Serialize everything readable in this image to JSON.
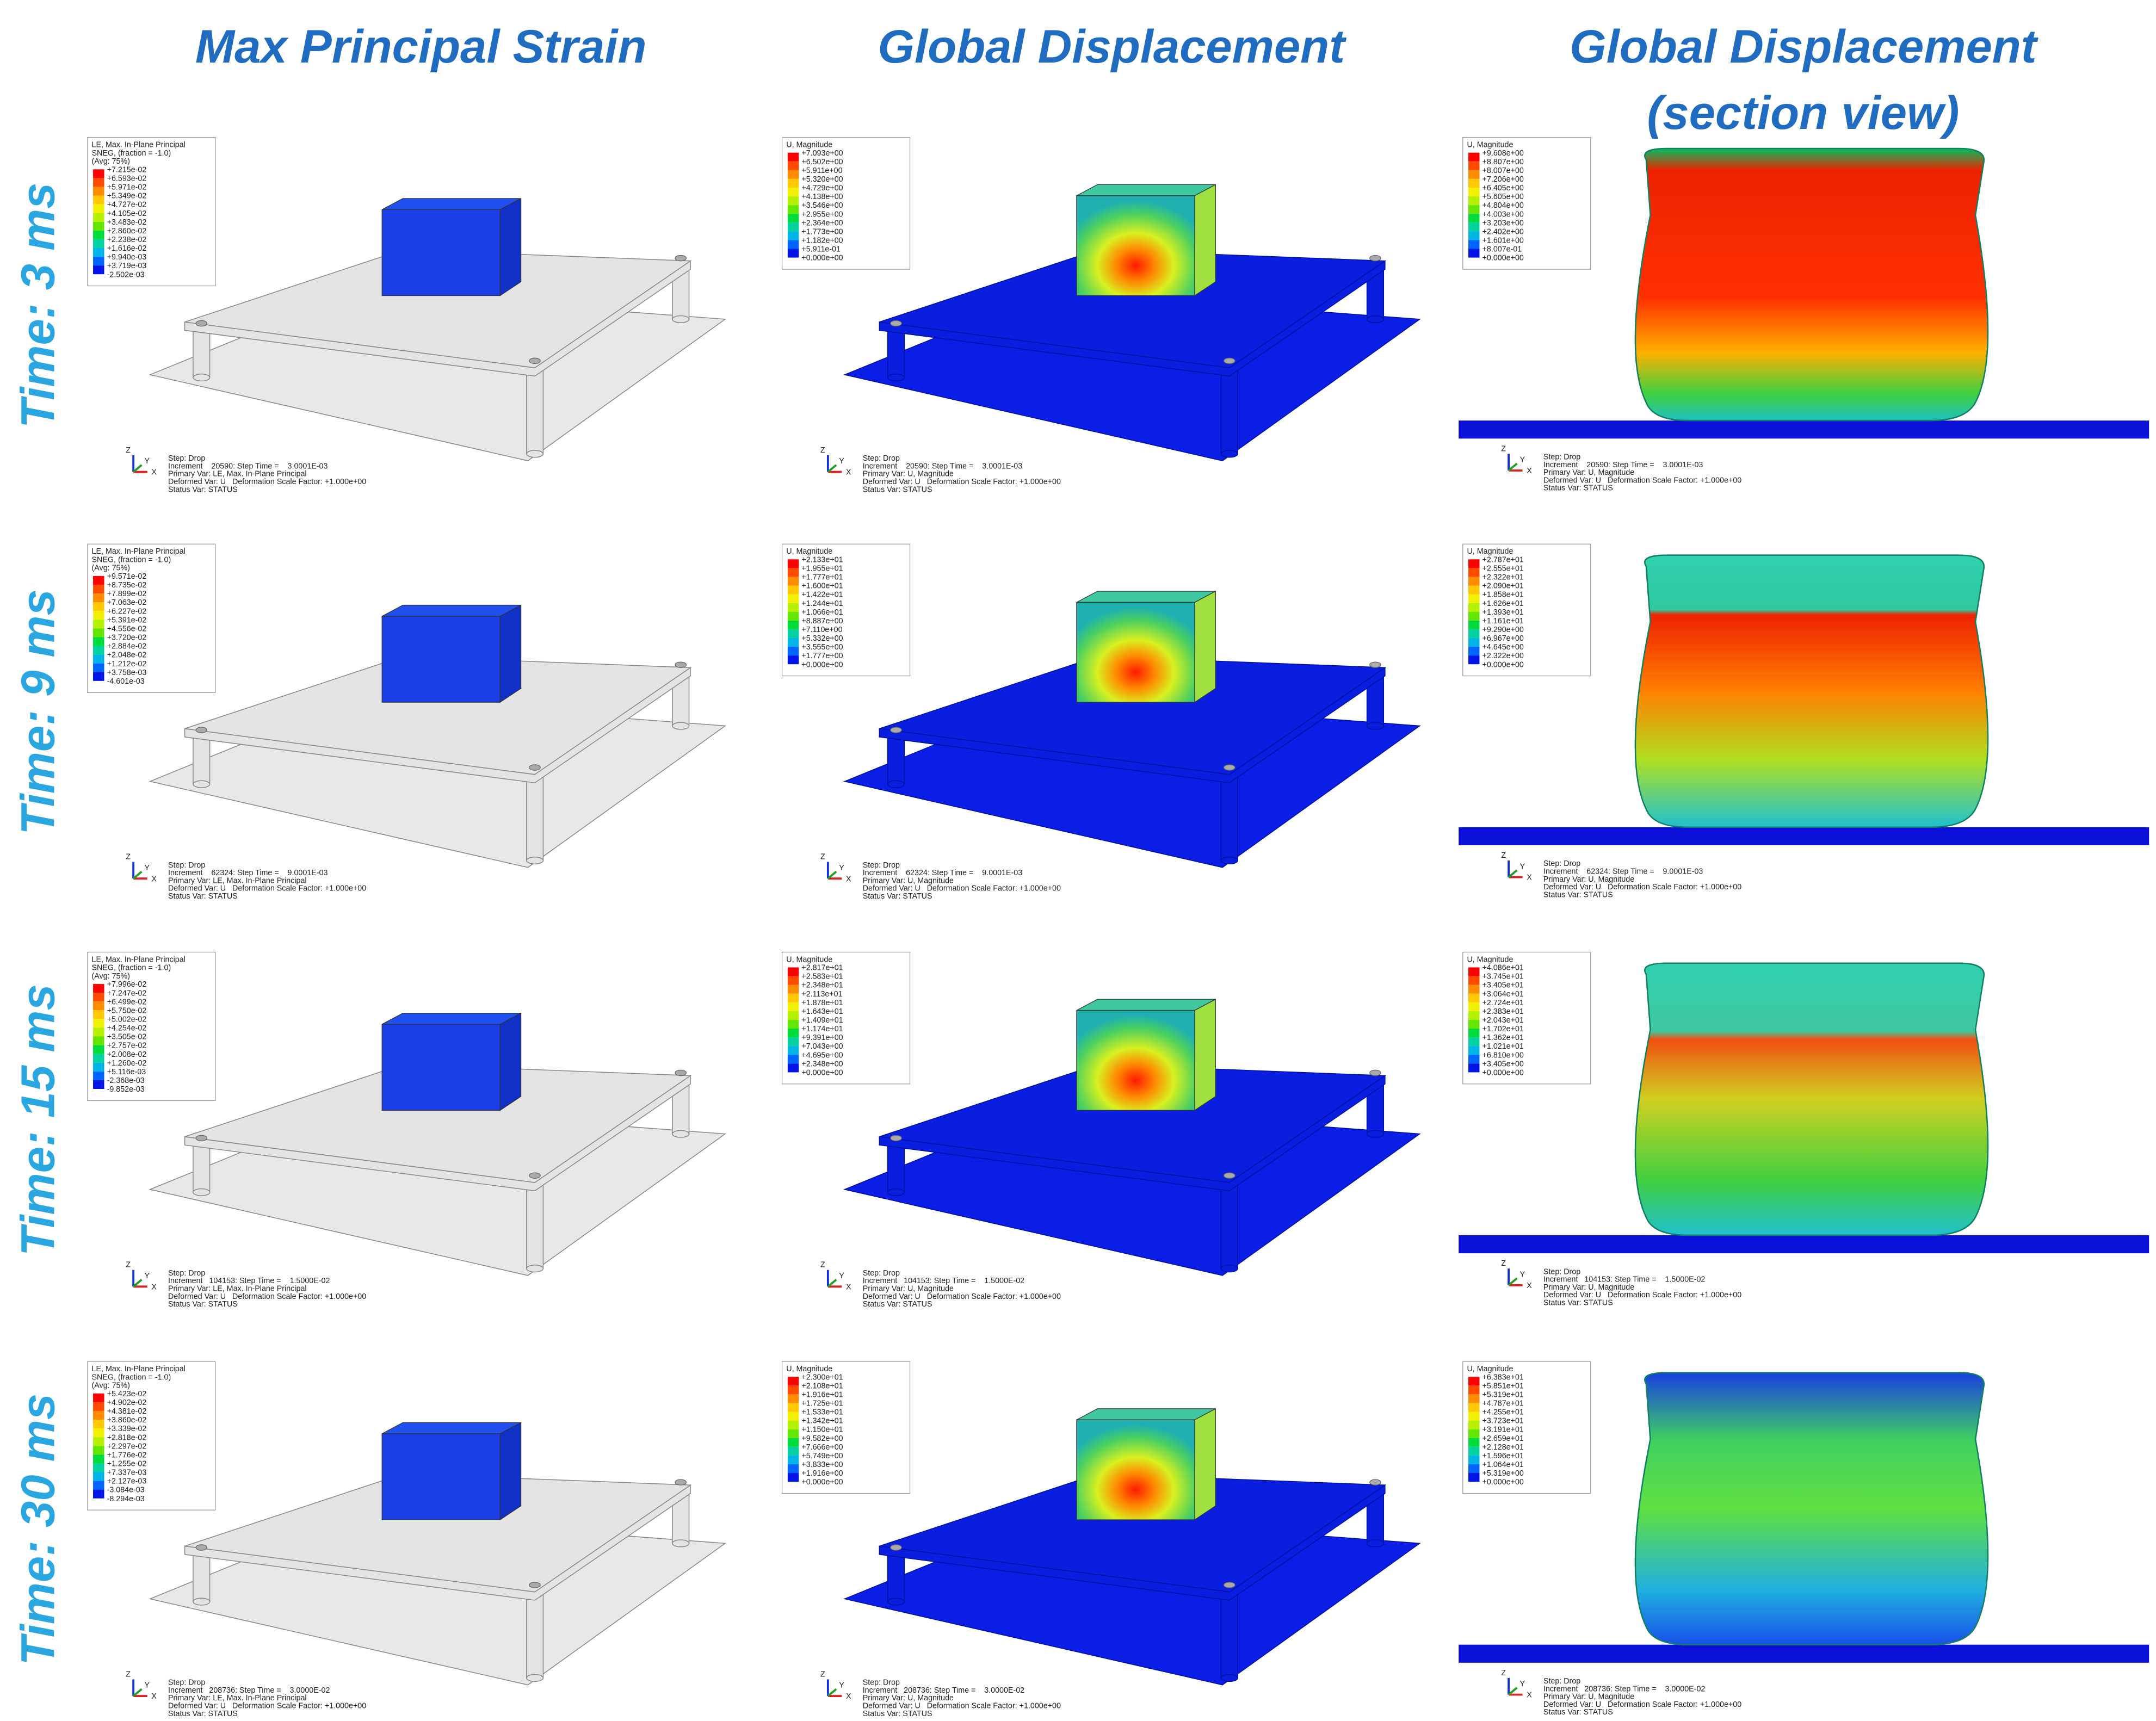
{
  "headers": [
    {
      "lines": [
        "Max Principal Strain"
      ]
    },
    {
      "lines": [
        "Global Displacement"
      ]
    },
    {
      "lines": [
        "Global Displacement",
        "(section view)"
      ]
    }
  ],
  "triad": {
    "z": "Z",
    "y": "Y",
    "x": "X"
  },
  "rows": [
    {
      "label": "Time: 3 ms",
      "panels": [
        {
          "legend_title": [
            "LE, Max. In-Plane Principal",
            "SNEG, (fraction = -1.0)",
            "(Avg: 75%)"
          ],
          "legend_values": [
            "+7.215e-02",
            "+6.593e-02",
            "+5.971e-02",
            "+5.349e-02",
            "+4.727e-02",
            "+4.105e-02",
            "+3.483e-02",
            "+2.860e-02",
            "+2.238e-02",
            "+1.616e-02",
            "+9.940e-03",
            "+3.719e-03",
            "-2.502e-03"
          ],
          "footer": [
            "Step: Drop",
            "Increment    20590: Step Time =    3.0001E-03",
            "Primary Var: LE, Max. In-Plane Principal",
            "Deformed Var: U   Deformation Scale Factor: +1.000e+00",
            "Status Var: STATUS"
          ]
        },
        {
          "legend_title": [
            "U, Magnitude"
          ],
          "legend_values": [
            "+7.093e+00",
            "+6.502e+00",
            "+5.911e+00",
            "+5.320e+00",
            "+4.729e+00",
            "+4.138e+00",
            "+3.546e+00",
            "+2.955e+00",
            "+2.364e+00",
            "+1.773e+00",
            "+1.182e+00",
            "+5.911e-01",
            "+0.000e+00"
          ],
          "footer": [
            "Step: Drop",
            "Increment    20590: Step Time =    3.0001E-03",
            "Primary Var: U, Magnitude",
            "Deformed Var: U   Deformation Scale Factor: +1.000e+00",
            "Status Var: STATUS"
          ]
        },
        {
          "legend_title": [
            "U, Magnitude"
          ],
          "legend_values": [
            "+9.608e+00",
            "+8.807e+00",
            "+8.007e+00",
            "+7.206e+00",
            "+6.405e+00",
            "+5.605e+00",
            "+4.804e+00",
            "+4.003e+00",
            "+3.203e+00",
            "+2.402e+00",
            "+1.601e+00",
            "+8.007e-01",
            "+0.000e+00"
          ],
          "footer": [
            "Step: Drop",
            "Increment    20590: Step Time =    3.0001E-03",
            "Primary Var: U, Magnitude",
            "Deformed Var: U   Deformation Scale Factor: +1.000e+00",
            "Status Var: STATUS"
          ]
        }
      ]
    },
    {
      "label": "Time: 9 ms",
      "panels": [
        {
          "legend_title": [
            "LE, Max. In-Plane Principal",
            "SNEG, (fraction = -1.0)",
            "(Avg: 75%)"
          ],
          "legend_values": [
            "+9.571e-02",
            "+8.735e-02",
            "+7.899e-02",
            "+7.063e-02",
            "+6.227e-02",
            "+5.391e-02",
            "+4.556e-02",
            "+3.720e-02",
            "+2.884e-02",
            "+2.048e-02",
            "+1.212e-02",
            "+3.758e-03",
            "-4.601e-03"
          ],
          "footer": [
            "Step: Drop",
            "Increment    62324: Step Time =    9.0001E-03",
            "Primary Var: LE, Max. In-Plane Principal",
            "Deformed Var: U   Deformation Scale Factor: +1.000e+00",
            "Status Var: STATUS"
          ]
        },
        {
          "legend_title": [
            "U, Magnitude"
          ],
          "legend_values": [
            "+2.133e+01",
            "+1.955e+01",
            "+1.777e+01",
            "+1.600e+01",
            "+1.422e+01",
            "+1.244e+01",
            "+1.066e+01",
            "+8.887e+00",
            "+7.110e+00",
            "+5.332e+00",
            "+3.555e+00",
            "+1.777e+00",
            "+0.000e+00"
          ],
          "footer": [
            "Step: Drop",
            "Increment    62324: Step Time =    9.0001E-03",
            "Primary Var: U, Magnitude",
            "Deformed Var: U   Deformation Scale Factor: +1.000e+00",
            "Status Var: STATUS"
          ]
        },
        {
          "legend_title": [
            "U, Magnitude"
          ],
          "legend_values": [
            "+2.787e+01",
            "+2.555e+01",
            "+2.322e+01",
            "+2.090e+01",
            "+1.858e+01",
            "+1.626e+01",
            "+1.393e+01",
            "+1.161e+01",
            "+9.290e+00",
            "+6.967e+00",
            "+4.645e+00",
            "+2.322e+00",
            "+0.000e+00"
          ],
          "footer": [
            "Step: Drop",
            "Increment    62324: Step Time =    9.0001E-03",
            "Primary Var: U, Magnitude",
            "Deformed Var: U   Deformation Scale Factor: +1.000e+00",
            "Status Var: STATUS"
          ]
        }
      ]
    },
    {
      "label": "Time: 15 ms",
      "panels": [
        {
          "legend_title": [
            "LE, Max. In-Plane Principal",
            "SNEG, (fraction = -1.0)",
            "(Avg: 75%)"
          ],
          "legend_values": [
            "+7.996e-02",
            "+7.247e-02",
            "+6.499e-02",
            "+5.750e-02",
            "+5.002e-02",
            "+4.254e-02",
            "+3.505e-02",
            "+2.757e-02",
            "+2.008e-02",
            "+1.260e-02",
            "+5.116e-03",
            "-2.368e-03",
            "-9.852e-03"
          ],
          "footer": [
            "Step: Drop",
            "Increment   104153: Step Time =    1.5000E-02",
            "Primary Var: LE, Max. In-Plane Principal",
            "Deformed Var: U   Deformation Scale Factor: +1.000e+00",
            "Status Var: STATUS"
          ]
        },
        {
          "legend_title": [
            "U, Magnitude"
          ],
          "legend_values": [
            "+2.817e+01",
            "+2.583e+01",
            "+2.348e+01",
            "+2.113e+01",
            "+1.878e+01",
            "+1.643e+01",
            "+1.409e+01",
            "+1.174e+01",
            "+9.391e+00",
            "+7.043e+00",
            "+4.695e+00",
            "+2.348e+00",
            "+0.000e+00"
          ],
          "footer": [
            "Step: Drop",
            "Increment   104153: Step Time =    1.5000E-02",
            "Primary Var: U, Magnitude",
            "Deformed Var: U   Deformation Scale Factor: +1.000e+00",
            "Status Var: STATUS"
          ]
        },
        {
          "legend_title": [
            "U, Magnitude"
          ],
          "legend_values": [
            "+4.086e+01",
            "+3.745e+01",
            "+3.405e+01",
            "+3.064e+01",
            "+2.724e+01",
            "+2.383e+01",
            "+2.043e+01",
            "+1.702e+01",
            "+1.362e+01",
            "+1.021e+01",
            "+6.810e+00",
            "+3.405e+00",
            "+0.000e+00"
          ],
          "footer": [
            "Step: Drop",
            "Increment   104153: Step Time =    1.5000E-02",
            "Primary Var: U, Magnitude",
            "Deformed Var: U   Deformation Scale Factor: +1.000e+00",
            "Status Var: STATUS"
          ]
        }
      ]
    },
    {
      "label": "Time: 30 ms",
      "panels": [
        {
          "legend_title": [
            "LE, Max. In-Plane Principal",
            "SNEG, (fraction = -1.0)",
            "(Avg: 75%)"
          ],
          "legend_values": [
            "+5.423e-02",
            "+4.902e-02",
            "+4.381e-02",
            "+3.860e-02",
            "+3.339e-02",
            "+2.818e-02",
            "+2.297e-02",
            "+1.776e-02",
            "+1.255e-02",
            "+7.337e-03",
            "+2.127e-03",
            "-3.084e-03",
            "-8.294e-03"
          ],
          "footer": [
            "Step: Drop",
            "Increment   208736: Step Time =    3.0000E-02",
            "Primary Var: LE, Max. In-Plane Principal",
            "Deformed Var: U   Deformation Scale Factor: +1.000e+00",
            "Status Var: STATUS"
          ]
        },
        {
          "legend_title": [
            "U, Magnitude"
          ],
          "legend_values": [
            "+2.300e+01",
            "+2.108e+01",
            "+1.916e+01",
            "+1.725e+01",
            "+1.533e+01",
            "+1.342e+01",
            "+1.150e+01",
            "+9.582e+00",
            "+7.666e+00",
            "+5.749e+00",
            "+3.833e+00",
            "+1.916e+00",
            "+0.000e+00"
          ],
          "footer": [
            "Step: Drop",
            "Increment   208736: Step Time =    3.0000E-02",
            "Primary Var: U, Magnitude",
            "Deformed Var: U   Deformation Scale Factor: +1.000e+00",
            "Status Var: STATUS"
          ]
        },
        {
          "legend_title": [
            "U, Magnitude"
          ],
          "legend_values": [
            "+6.383e+01",
            "+5.851e+01",
            "+5.319e+01",
            "+4.787e+01",
            "+4.255e+01",
            "+3.723e+01",
            "+3.191e+01",
            "+2.659e+01",
            "+2.128e+01",
            "+1.596e+01",
            "+1.064e+01",
            "+5.319e+00",
            "+0.000e+00"
          ],
          "footer": [
            "Step: Drop",
            "Increment   208736: Step Time =    3.0000E-02",
            "Primary Var: U, Magnitude",
            "Deformed Var: U   Deformation Scale Factor: +1.000e+00",
            "Status Var: STATUS"
          ]
        }
      ]
    }
  ]
}
